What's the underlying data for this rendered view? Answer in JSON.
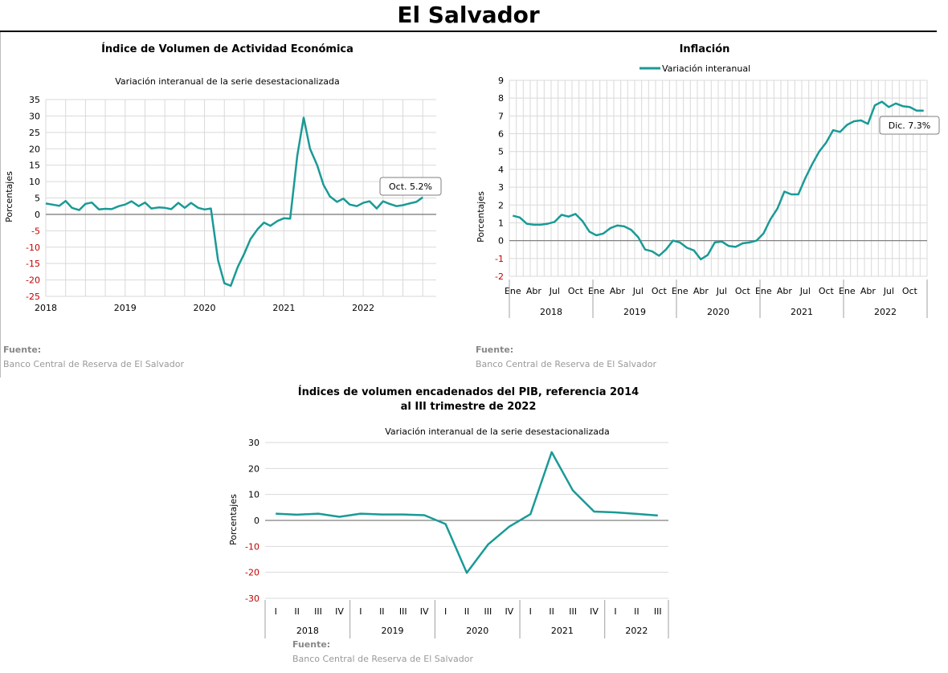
{
  "page": {
    "title": "El Salvador"
  },
  "colors": {
    "series": "#1a9a96",
    "negative_tick": "#c00000",
    "grid": "#d9d9d9",
    "zero_line": "#808080"
  },
  "source": {
    "label": "Fuente:",
    "text": "Banco Central de Reserva de El Salvador"
  },
  "chart_data": [
    {
      "type": "line",
      "title": "Índice de Volumen de  Actividad Económica",
      "subtitle": "Variación interanual de la serie desestacionalizada",
      "ylabel": "Porcentajes",
      "xlabel": "",
      "ylim": [
        -25,
        35
      ],
      "yticks": [
        35,
        30,
        25,
        20,
        15,
        10,
        5,
        0,
        -5,
        -10,
        -15,
        -20,
        -25
      ],
      "xlim": [
        2018,
        2022.92
      ],
      "xticks": [
        2018,
        2019,
        2020,
        2021,
        2022
      ],
      "grid": true,
      "annotation": "Oct. 5.2%",
      "series": [
        {
          "x": [
            2018.0,
            2018.08,
            2018.17,
            2018.25,
            2018.33,
            2018.42,
            2018.5,
            2018.58,
            2018.67,
            2018.75,
            2018.83,
            2018.92,
            2019.0,
            2019.08,
            2019.17,
            2019.25,
            2019.33,
            2019.42,
            2019.5,
            2019.58,
            2019.67,
            2019.75,
            2019.83,
            2019.92,
            2020.0,
            2020.08,
            2020.17,
            2020.25,
            2020.33,
            2020.42,
            2020.5,
            2020.58,
            2020.67,
            2020.75,
            2020.83,
            2020.92,
            2021.0,
            2021.08,
            2021.17,
            2021.25,
            2021.33,
            2021.42,
            2021.5,
            2021.58,
            2021.67,
            2021.75,
            2021.83,
            2021.92,
            2022.0,
            2022.08,
            2022.17,
            2022.25,
            2022.33,
            2022.42,
            2022.5,
            2022.58,
            2022.67,
            2022.75
          ],
          "y": [
            3.3,
            3.0,
            2.6,
            4.1,
            2.0,
            1.3,
            3.2,
            3.6,
            1.5,
            1.7,
            1.6,
            2.5,
            3.0,
            4.0,
            2.5,
            3.6,
            1.8,
            2.1,
            2.0,
            1.6,
            3.5,
            2.0,
            3.5,
            2.0,
            1.5,
            1.8,
            -14.0,
            -21.0,
            -21.8,
            -16.0,
            -12.0,
            -7.5,
            -4.5,
            -2.5,
            -3.5,
            -2.0,
            -1.2,
            -1.3,
            18.0,
            29.5,
            20.0,
            15.0,
            9.0,
            5.5,
            3.8,
            4.8,
            3.0,
            2.5,
            3.5,
            4.0,
            1.8,
            4.0,
            3.2,
            2.5,
            2.8,
            3.3,
            3.8,
            5.2
          ]
        }
      ]
    },
    {
      "type": "line",
      "title": "Inflación",
      "ylabel": "Porcentajes",
      "xlabel": "",
      "ylim": [
        -2,
        9
      ],
      "yticks": [
        9,
        8,
        7,
        6,
        5,
        4,
        3,
        2,
        1,
        0,
        -1,
        -2
      ],
      "month_ticks": [
        "Ene",
        "Abr",
        "Jul",
        "Oct",
        "Ene",
        "Abr",
        "Jul",
        "Oct",
        "Ene",
        "Abr",
        "Jul",
        "Oct",
        "Ene",
        "Abr",
        "Jul",
        "Oct",
        "Ene",
        "Abr",
        "Jul",
        "Oct"
      ],
      "years": [
        "2018",
        "2019",
        "2020",
        "2021",
        "2022"
      ],
      "grid": true,
      "legend": "top-center",
      "annotation": "Dic. 7.3%",
      "series": [
        {
          "name": "Variación interanual",
          "y": [
            1.4,
            1.3,
            0.95,
            0.9,
            0.9,
            0.95,
            1.05,
            1.45,
            1.35,
            1.5,
            1.1,
            0.5,
            0.3,
            0.4,
            0.7,
            0.85,
            0.8,
            0.6,
            0.2,
            -0.5,
            -0.6,
            -0.85,
            -0.5,
            0.0,
            -0.1,
            -0.4,
            -0.55,
            -1.05,
            -0.8,
            -0.1,
            -0.05,
            -0.3,
            -0.35,
            -0.15,
            -0.1,
            0.0,
            0.4,
            1.2,
            1.8,
            2.75,
            2.6,
            2.6,
            3.5,
            4.3,
            5.0,
            5.5,
            6.2,
            6.1,
            6.5,
            6.7,
            6.75,
            6.55,
            7.6,
            7.8,
            7.5,
            7.7,
            7.55,
            7.5,
            7.3,
            7.3
          ]
        }
      ]
    },
    {
      "type": "line",
      "title": "Índices de volumen encadenados del PIB, referencia 2014",
      "title_line2": "al III trimestre de 2022",
      "subtitle": "Variación interanual de la serie desestacionalizada",
      "ylabel": "Porcentajes",
      "xlabel": "",
      "ylim": [
        -30,
        30
      ],
      "yticks": [
        30,
        20,
        10,
        0,
        -10,
        -20,
        -30
      ],
      "quarters": [
        "I",
        "II",
        "III",
        "IV",
        "I",
        "II",
        "III",
        "IV",
        "I",
        "II",
        "III",
        "IV",
        "I",
        "II",
        "III",
        "IV",
        "I",
        "II",
        "III"
      ],
      "years": [
        "2018",
        "2019",
        "2020",
        "2021",
        "2022"
      ],
      "grid": true,
      "series": [
        {
          "values": [
            2.6,
            2.2,
            2.6,
            1.4,
            2.6,
            2.3,
            2.3,
            2.0,
            -1.4,
            -20.2,
            -9.3,
            -2.4,
            2.4,
            26.3,
            11.5,
            3.4,
            3.1,
            2.5,
            1.9
          ]
        }
      ]
    }
  ]
}
